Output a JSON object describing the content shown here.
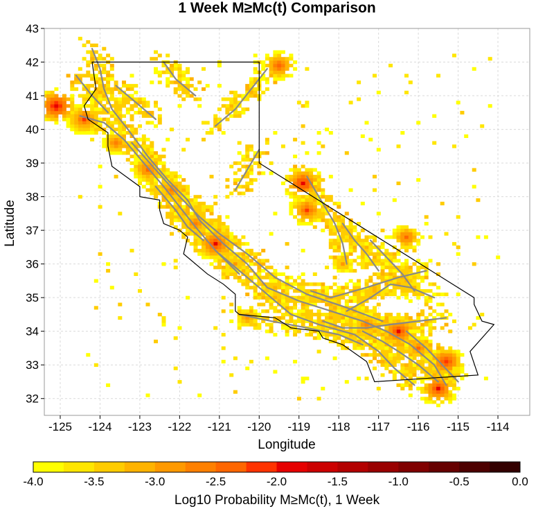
{
  "title": "1 Week M≥Mc(t) Comparison",
  "map": {
    "xlabel": "Longitude",
    "ylabel": "Latitude",
    "lon_range": [
      -125.4,
      -113.2
    ],
    "lat_range": [
      31.5,
      43.0
    ],
    "lon_ticks": [
      "-125",
      "-124",
      "-123",
      "-122",
      "-121",
      "-120",
      "-119",
      "-118",
      "-117",
      "-116",
      "-115",
      "-114"
    ],
    "lat_ticks": [
      "32",
      "33",
      "34",
      "35",
      "36",
      "37",
      "38",
      "39",
      "40",
      "41",
      "42",
      "43"
    ],
    "grid": true,
    "colors": {
      "background": "#ffffff",
      "grid": "#d9d9d9",
      "faults": "#888888",
      "border": "#000000"
    }
  },
  "colorbar": {
    "label": "Log10 Probability M≥Mc(t), 1 Week",
    "tick_labels": [
      "-4.0",
      "-3.5",
      "-3.0",
      "-2.5",
      "-2.0",
      "-1.5",
      "-1.0",
      "-0.5",
      "0.0"
    ],
    "range": [
      -4.0,
      0.0
    ],
    "colors": [
      "#ffff00",
      "#ffe600",
      "#ffcc00",
      "#ffb300",
      "#ff9900",
      "#ff8000",
      "#ff6600",
      "#ff3300",
      "#e60000",
      "#cc0000",
      "#b30000",
      "#990000",
      "#800000",
      "#660000",
      "#4d0000",
      "#330000"
    ]
  },
  "chart_data": {
    "type": "heatmap",
    "xlabel": "Longitude",
    "ylabel": "Latitude",
    "xlim": [
      -125.4,
      -113.2
    ],
    "ylim": [
      31.5,
      43.0
    ],
    "colorbar_range": [
      -4.0,
      0.0
    ],
    "hotspots": [
      {
        "lon": -125.1,
        "lat": 40.7,
        "value": -1.8
      },
      {
        "lon": -124.4,
        "lat": 40.3,
        "value": -2.2
      },
      {
        "lon": -123.6,
        "lat": 39.6,
        "value": -2.6
      },
      {
        "lon": -122.8,
        "lat": 38.8,
        "value": -2.4
      },
      {
        "lon": -122.2,
        "lat": 38.2,
        "value": -2.6
      },
      {
        "lon": -121.6,
        "lat": 37.2,
        "value": -2.6
      },
      {
        "lon": -121.1,
        "lat": 36.6,
        "value": -2.0
      },
      {
        "lon": -120.6,
        "lat": 36.0,
        "value": -2.9
      },
      {
        "lon": -119.5,
        "lat": 41.9,
        "value": -2.3
      },
      {
        "lon": -118.9,
        "lat": 38.4,
        "value": -1.9
      },
      {
        "lon": -118.8,
        "lat": 37.6,
        "value": -2.2
      },
      {
        "lon": -117.9,
        "lat": 36.0,
        "value": -2.9
      },
      {
        "lon": -120.3,
        "lat": 34.4,
        "value": -2.8
      },
      {
        "lon": -117.3,
        "lat": 34.2,
        "value": -2.6
      },
      {
        "lon": -116.5,
        "lat": 34.0,
        "value": -2.0
      },
      {
        "lon": -116.0,
        "lat": 33.5,
        "value": -2.5
      },
      {
        "lon": -115.3,
        "lat": 33.1,
        "value": -2.1
      },
      {
        "lon": -115.5,
        "lat": 32.3,
        "value": -2.0
      },
      {
        "lon": -116.3,
        "lat": 36.8,
        "value": -2.4
      }
    ]
  }
}
